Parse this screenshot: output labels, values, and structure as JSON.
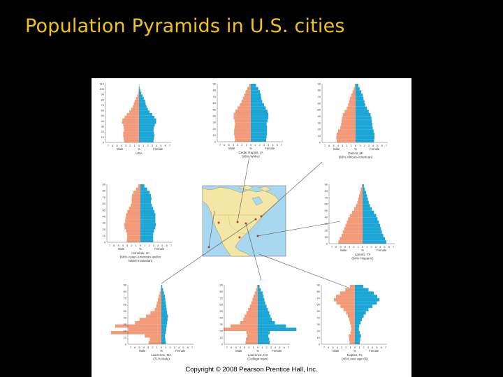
{
  "slide": {
    "title": "Population Pyramids in U.S. cities",
    "copyright": "Copyright © 2008 Pearson Prentice Hall, Inc."
  },
  "colors": {
    "male": "#f39a78",
    "female": "#1ba6d6",
    "title": "#f2c41a",
    "background": "#000000",
    "ocean": "#a7d8f0",
    "land": "#f4e6a4"
  },
  "map": {
    "icon": "north-america-map"
  },
  "chart_data": [
    {
      "type": "bar",
      "orientation": "horizontal",
      "position": "top-left",
      "caption": [
        "USA"
      ],
      "male_label": "Male",
      "female_label": "Female",
      "x_unit": "%",
      "x_ticks": [
        7,
        6,
        5,
        4,
        3,
        2,
        1,
        0,
        1,
        2,
        3,
        4,
        5,
        6,
        7
      ],
      "y_ticks": [
        110,
        100,
        90,
        80,
        70,
        60,
        50,
        40,
        30,
        20,
        10,
        0
      ],
      "ylim": [
        0,
        110
      ],
      "xlim": [
        0,
        7
      ],
      "age_step": 5,
      "series": [
        {
          "name": "Male",
          "values": [
            3.4,
            3.5,
            3.6,
            3.6,
            3.4,
            3.5,
            3.6,
            3.9,
            3.8,
            3.3,
            2.8,
            2.2,
            1.8,
            1.4,
            1.2,
            1.0,
            0.7,
            0.4,
            0.2,
            0.1,
            0.05,
            0.02
          ]
        },
        {
          "name": "Female",
          "values": [
            3.3,
            3.4,
            3.5,
            3.4,
            3.3,
            3.4,
            3.6,
            3.9,
            3.9,
            3.5,
            3.0,
            2.4,
            2.0,
            1.7,
            1.5,
            1.4,
            1.1,
            0.8,
            0.5,
            0.3,
            0.12,
            0.05
          ]
        }
      ]
    },
    {
      "type": "bar",
      "orientation": "horizontal",
      "position": "top-center",
      "caption": [
        "Cedar Rapids, IA",
        "(96% White)"
      ],
      "male_label": "Male",
      "female_label": "Female",
      "x_unit": "%",
      "x_ticks": [
        7,
        6,
        5,
        4,
        3,
        2,
        1,
        0,
        1,
        2,
        3,
        4,
        5,
        6,
        7
      ],
      "y_ticks": [
        90,
        80,
        70,
        60,
        50,
        40,
        30,
        20,
        10,
        0
      ],
      "ylim": [
        0,
        90
      ],
      "xlim": [
        0,
        7
      ],
      "age_step": 5,
      "series": [
        {
          "name": "Male",
          "values": [
            3.6,
            3.7,
            3.8,
            3.8,
            3.7,
            3.6,
            3.7,
            3.9,
            3.9,
            3.5,
            3.0,
            2.5,
            2.1,
            1.8,
            1.5,
            1.2,
            0.8,
            0.4
          ]
        },
        {
          "name": "Female",
          "values": [
            3.5,
            3.6,
            3.7,
            3.7,
            3.7,
            3.6,
            3.8,
            4.0,
            4.0,
            3.8,
            3.4,
            3.0,
            2.6,
            2.4,
            2.3,
            2.1,
            1.7,
            1.2
          ]
        }
      ]
    },
    {
      "type": "bar",
      "orientation": "horizontal",
      "position": "top-right",
      "caption": [
        "Detroit, MI",
        "(83% African-American)"
      ],
      "male_label": "Male",
      "female_label": "Female",
      "x_unit": "%",
      "x_ticks": [
        7,
        6,
        5,
        4,
        3,
        2,
        1,
        0,
        1,
        2,
        3,
        4,
        5,
        6,
        7
      ],
      "y_ticks": [
        90,
        80,
        70,
        60,
        50,
        40,
        30,
        20,
        10,
        0
      ],
      "ylim": [
        0,
        90
      ],
      "xlim": [
        0,
        7
      ],
      "age_step": 5,
      "series": [
        {
          "name": "Male",
          "values": [
            4.3,
            4.4,
            4.3,
            4.0,
            3.5,
            3.3,
            3.2,
            3.1,
            2.9,
            2.5,
            2.0,
            1.7,
            1.5,
            1.3,
            1.0,
            0.7,
            0.4,
            0.2
          ]
        },
        {
          "name": "Female",
          "values": [
            4.2,
            4.3,
            4.3,
            4.1,
            3.9,
            3.8,
            3.7,
            3.6,
            3.4,
            3.0,
            2.6,
            2.2,
            2.0,
            1.8,
            1.6,
            1.3,
            0.9,
            0.6
          ]
        }
      ]
    },
    {
      "type": "bar",
      "orientation": "horizontal",
      "position": "middle-left",
      "caption": [
        "Honolulu, HI",
        "(66% Asian-American and/or",
        "Native Hawaiian)"
      ],
      "male_label": "Male",
      "female_label": "Female",
      "x_unit": "%",
      "x_ticks": [
        7,
        6,
        5,
        4,
        3,
        2,
        1,
        0,
        1,
        2,
        3,
        4,
        5,
        6,
        7
      ],
      "y_ticks": [
        90,
        80,
        70,
        60,
        50,
        40,
        30,
        20,
        10,
        0
      ],
      "ylim": [
        0,
        90
      ],
      "xlim": [
        0,
        7
      ],
      "age_step": 5,
      "series": [
        {
          "name": "Male",
          "values": [
            3.1,
            3.0,
            3.0,
            3.3,
            3.6,
            3.7,
            3.5,
            3.4,
            3.3,
            3.0,
            2.6,
            2.2,
            2.0,
            2.0,
            1.9,
            1.6,
            1.0,
            0.5
          ]
        },
        {
          "name": "Female",
          "values": [
            2.9,
            2.9,
            2.9,
            3.1,
            3.4,
            3.5,
            3.4,
            3.4,
            3.4,
            3.2,
            2.9,
            2.6,
            2.4,
            2.5,
            2.4,
            2.1,
            1.5,
            0.9
          ]
        }
      ]
    },
    {
      "type": "bar",
      "orientation": "horizontal",
      "position": "middle-right",
      "caption": [
        "Laredo, TX",
        "(94% Hispanic)"
      ],
      "male_label": "Male",
      "female_label": "Female",
      "x_unit": "%",
      "x_ticks": [
        7,
        6,
        5,
        4,
        3,
        2,
        1,
        0,
        1,
        2,
        3,
        4,
        5,
        6,
        7
      ],
      "y_ticks": [
        90,
        80,
        70,
        60,
        50,
        40,
        30,
        20,
        10,
        0
      ],
      "ylim": [
        0,
        90
      ],
      "xlim": [
        0,
        7
      ],
      "age_step": 5,
      "series": [
        {
          "name": "Male",
          "values": [
            5.5,
            5.2,
            4.8,
            4.5,
            4.2,
            3.9,
            3.6,
            3.3,
            2.9,
            2.4,
            1.9,
            1.5,
            1.2,
            1.0,
            0.8,
            0.6,
            0.4,
            0.2
          ]
        },
        {
          "name": "Female",
          "values": [
            5.4,
            5.1,
            4.7,
            4.4,
            4.2,
            4.0,
            3.7,
            3.4,
            3.1,
            2.6,
            2.1,
            1.7,
            1.4,
            1.2,
            1.0,
            0.8,
            0.5,
            0.3
          ]
        }
      ]
    },
    {
      "type": "bar",
      "orientation": "horizontal",
      "position": "bottom-left",
      "caption": [
        "Lawrence, MA",
        "(71% Male)"
      ],
      "male_label": "Male",
      "female_label": "Female",
      "x_unit": "%",
      "x_ticks": [
        7,
        6,
        5,
        4,
        3,
        2,
        1,
        0,
        1,
        2,
        3,
        4,
        5,
        6,
        7
      ],
      "y_ticks": [
        90,
        80,
        70,
        60,
        50,
        40,
        30,
        20,
        10,
        0
      ],
      "ylim": [
        0,
        90
      ],
      "xlim": [
        0,
        7
      ],
      "age_step": 5,
      "series": [
        {
          "name": "Male",
          "values": [
            2.9,
            2.6,
            3.8,
            11.5,
            7.5,
            10.5,
            6.0,
            5.0,
            3.5,
            2.5,
            1.5,
            1.2,
            1.0,
            0.8,
            0.6,
            0.4,
            0.2,
            0.1
          ]
        },
        {
          "name": "Female",
          "values": [
            1.0,
            0.9,
            0.8,
            1.0,
            1.1,
            1.2,
            1.3,
            1.4,
            1.5,
            1.3,
            1.2,
            1.1,
            1.0,
            0.9,
            0.8,
            0.6,
            0.4,
            0.2
          ]
        }
      ]
    },
    {
      "type": "bar",
      "orientation": "horizontal",
      "position": "bottom-center",
      "caption": [
        "Lawrence, KS",
        "(College town)"
      ],
      "male_label": "Male",
      "female_label": "Female",
      "x_unit": "%",
      "x_ticks": [
        7,
        6,
        5,
        4,
        3,
        2,
        1,
        0,
        1,
        2,
        3,
        4,
        5,
        6,
        7
      ],
      "y_ticks": [
        90,
        80,
        70,
        60,
        50,
        40,
        30,
        20,
        10,
        0
      ],
      "ylim": [
        0,
        90
      ],
      "xlim": [
        0,
        7
      ],
      "age_step": 5,
      "series": [
        {
          "name": "Male",
          "values": [
            2.8,
            2.7,
            2.4,
            2.6,
            7.8,
            6.2,
            4.0,
            3.3,
            3.0,
            2.6,
            2.2,
            1.8,
            1.5,
            1.2,
            1.0,
            0.7,
            0.4,
            0.2
          ]
        },
        {
          "name": "Female",
          "values": [
            2.7,
            2.6,
            2.4,
            2.7,
            8.8,
            6.4,
            3.9,
            3.2,
            2.9,
            2.6,
            2.3,
            2.0,
            1.7,
            1.5,
            1.3,
            1.1,
            0.7,
            0.4
          ]
        }
      ]
    },
    {
      "type": "bar",
      "orientation": "horizontal",
      "position": "bottom-right",
      "caption": [
        "Naples, FL",
        "(46% over age 65)"
      ],
      "male_label": "Male",
      "female_label": "Female",
      "x_unit": "%",
      "x_ticks": [
        7,
        6,
        5,
        4,
        3,
        2,
        1,
        0,
        1,
        2,
        3,
        4,
        5,
        6,
        7
      ],
      "y_ticks": [
        90,
        80,
        70,
        60,
        50,
        40,
        30,
        20,
        10,
        0
      ],
      "ylim": [
        0,
        90
      ],
      "xlim": [
        0,
        7
      ],
      "age_step": 5,
      "series": [
        {
          "name": "Male",
          "values": [
            1.2,
            1.3,
            1.4,
            1.0,
            0.8,
            0.9,
            1.1,
            1.3,
            1.6,
            2.0,
            2.6,
            3.3,
            4.2,
            4.8,
            4.3,
            3.4,
            2.2,
            1.1
          ]
        },
        {
          "name": "Female",
          "values": [
            1.1,
            1.2,
            1.4,
            1.1,
            0.9,
            1.0,
            1.3,
            1.6,
            2.0,
            2.5,
            3.1,
            4.0,
            5.0,
            5.6,
            5.1,
            4.3,
            3.1,
            1.9
          ]
        }
      ]
    }
  ]
}
